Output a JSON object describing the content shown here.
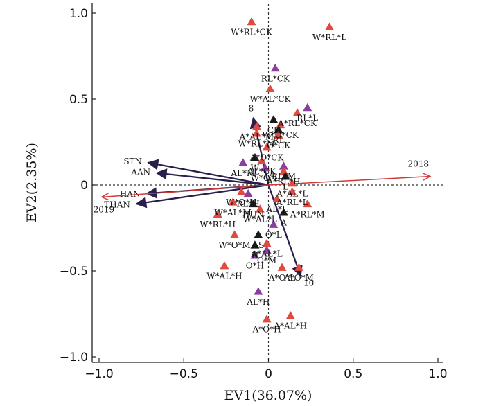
{
  "chart_data": {
    "type": "scatter",
    "subtype": "rda-biplot",
    "xlabel": "EV1(36.07%)",
    "ylabel": "EV2(2.35%)",
    "xlim": [
      -1.05,
      1.05
    ],
    "ylim": [
      -1.03,
      1.02
    ],
    "xticks": [
      -1.0,
      -0.5,
      0,
      0.5,
      1.0
    ],
    "xtick_labels": [
      "−1.0",
      "−0.5",
      "0",
      "0.5",
      "1.0"
    ],
    "yticks": [
      1.0,
      0.5,
      0,
      -0.5,
      -1.0
    ],
    "ytick_labels": [
      "1.0",
      "0.5",
      "0",
      "−0.5",
      "−1.0"
    ],
    "colors": {
      "red": "#e04a3f",
      "purple": "#8a3fa0",
      "black": "#1a1a1a",
      "env_arrow": "#d23a3a",
      "species_arrow": "#2a1e4a"
    },
    "env_arrows": [
      {
        "label": "2018",
        "x": 0.95,
        "y": 0.05,
        "color": "red"
      },
      {
        "label": "2019",
        "x": -0.98,
        "y": -0.07,
        "color": "red"
      }
    ],
    "species_arrows": [
      {
        "label": "STN",
        "x": -0.71,
        "y": 0.13
      },
      {
        "label": "AAN",
        "x": -0.66,
        "y": 0.07
      },
      {
        "label": "HAN",
        "x": -0.72,
        "y": -0.05
      },
      {
        "label": "THAN",
        "x": -0.78,
        "y": -0.11
      },
      {
        "label": "8",
        "x": -0.09,
        "y": 0.39
      },
      {
        "label": "10",
        "x": 0.19,
        "y": -0.53
      }
    ],
    "points": [
      {
        "label": "W*RL*CK",
        "x": -0.1,
        "y": 0.95,
        "color": "red"
      },
      {
        "label": "W*RL*L",
        "x": 0.36,
        "y": 0.92,
        "color": "red"
      },
      {
        "label": "RL*CK",
        "x": 0.04,
        "y": 0.68,
        "color": "purple"
      },
      {
        "label": "W*AL*CK",
        "x": 0.01,
        "y": 0.56,
        "color": "red"
      },
      {
        "label": "RL*L",
        "x": 0.23,
        "y": 0.45,
        "color": "purple"
      },
      {
        "label": "A*RL*CK",
        "x": 0.17,
        "y": 0.42,
        "color": "red"
      },
      {
        "label": "CK",
        "x": 0.03,
        "y": 0.38,
        "color": "black"
      },
      {
        "label": "W*O*CK",
        "x": 0.07,
        "y": 0.35,
        "color": "red"
      },
      {
        "label": "RL",
        "x": 0.06,
        "y": 0.32,
        "color": "black"
      },
      {
        "label": "O*CK",
        "x": 0.06,
        "y": 0.29,
        "color": "red"
      },
      {
        "label": "A*AL*M",
        "x": -0.07,
        "y": 0.34,
        "color": "red"
      },
      {
        "label": "W*RL*M",
        "x": -0.07,
        "y": 0.3,
        "color": "red"
      },
      {
        "label": "A*O*CK",
        "x": -0.01,
        "y": 0.22,
        "color": "red"
      },
      {
        "label": "W",
        "x": -0.08,
        "y": 0.16,
        "color": "black"
      },
      {
        "label": "AL*CK",
        "x": -0.04,
        "y": 0.14,
        "color": "red"
      },
      {
        "label": "RL*M",
        "x": 0.09,
        "y": 0.11,
        "color": "purple"
      },
      {
        "label": "AL*M",
        "x": -0.15,
        "y": 0.13,
        "color": "purple"
      },
      {
        "label": "W*O*L",
        "x": -0.02,
        "y": 0.1,
        "color": "purple"
      },
      {
        "label": "A*RL*H",
        "x": 0.09,
        "y": 0.08,
        "color": "red"
      },
      {
        "label": "L",
        "x": 0.1,
        "y": 0.05,
        "color": "black"
      },
      {
        "label": "A*AL*L",
        "x": 0.14,
        "y": 0.01,
        "color": "red"
      },
      {
        "label": "A*RL*L",
        "x": 0.14,
        "y": -0.04,
        "color": "red"
      },
      {
        "label": "W*O*H",
        "x": -0.16,
        "y": -0.04,
        "color": "red"
      },
      {
        "label": "RL*H",
        "x": -0.12,
        "y": -0.05,
        "color": "purple"
      },
      {
        "label": "AL*L",
        "x": 0.05,
        "y": -0.08,
        "color": "red"
      },
      {
        "label": "W*AL*M",
        "x": -0.21,
        "y": -0.1,
        "color": "red"
      },
      {
        "label": "HUN",
        "x": -0.09,
        "y": -0.11,
        "color": "black"
      },
      {
        "label": "A*RL*M",
        "x": 0.23,
        "y": -0.11,
        "color": "red"
      },
      {
        "label": "W*AL*L",
        "x": -0.05,
        "y": -0.14,
        "color": "red"
      },
      {
        "label": "A",
        "x": 0.09,
        "y": -0.16,
        "color": "black"
      },
      {
        "label": "W*RL*H",
        "x": -0.3,
        "y": -0.17,
        "color": "red"
      },
      {
        "label": "O*L",
        "x": 0.03,
        "y": -0.23,
        "color": "purple"
      },
      {
        "label": "AS",
        "x": -0.06,
        "y": -0.29,
        "color": "black"
      },
      {
        "label": "W*O*M",
        "x": -0.2,
        "y": -0.29,
        "color": "red"
      },
      {
        "label": "A*AL*L",
        "x": -0.01,
        "y": -0.34,
        "color": "red"
      },
      {
        "label": "H",
        "x": -0.08,
        "y": -0.35,
        "color": "black"
      },
      {
        "label": "O*M",
        "x": -0.01,
        "y": -0.38,
        "color": "purple"
      },
      {
        "label": "O*H",
        "x": -0.08,
        "y": -0.41,
        "color": "purple"
      },
      {
        "label": "W*AL*H",
        "x": -0.26,
        "y": -0.47,
        "color": "red"
      },
      {
        "label": "A*O*L",
        "x": 0.08,
        "y": -0.48,
        "color": "red"
      },
      {
        "label": "A*O*M",
        "x": 0.18,
        "y": -0.48,
        "color": "red"
      },
      {
        "label": "AL*H",
        "x": -0.06,
        "y": -0.62,
        "color": "purple"
      },
      {
        "label": "A*AL*H",
        "x": 0.13,
        "y": -0.76,
        "color": "red"
      },
      {
        "label": "A*O*H",
        "x": -0.01,
        "y": -0.78,
        "color": "red"
      }
    ]
  }
}
